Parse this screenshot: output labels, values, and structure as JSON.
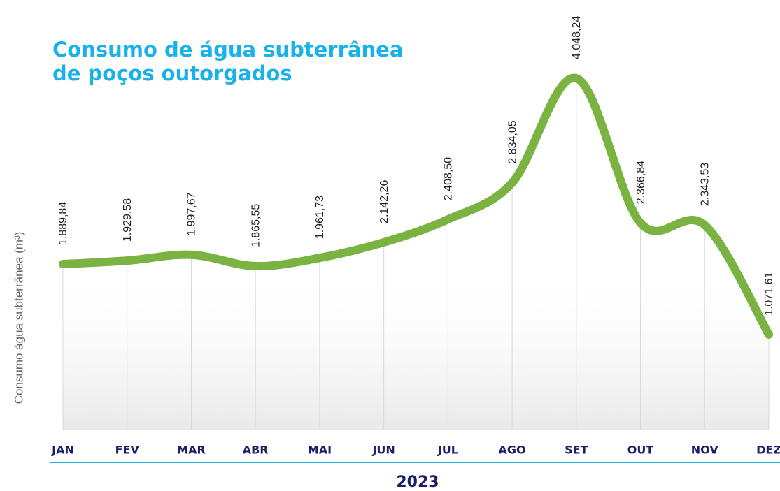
{
  "chart_data": {
    "type": "line",
    "title": [
      "Consumo de água subterrânea",
      "de poços outorgados"
    ],
    "ylabel": "Consumo água subterrânea (m³)",
    "xlabel": "2023",
    "categories": [
      "JAN",
      "FEV",
      "MAR",
      "ABR",
      "MAI",
      "JUN",
      "JUL",
      "AGO",
      "SET",
      "OUT",
      "NOV",
      "DEZ"
    ],
    "values": [
      1889.84,
      1929.58,
      1997.67,
      1865.55,
      1961.73,
      2142.26,
      2408.5,
      2834.05,
      4048.24,
      2366.84,
      2343.53,
      1071.61
    ],
    "value_labels": [
      "1.889,84",
      "1.929,58",
      "1.997,67",
      "1.865,55",
      "1.961,73",
      "2.142,26",
      "2.408,50",
      "2.834,05",
      "4.048,24",
      "2.366,84",
      "2.343,53",
      "1.071,61"
    ],
    "color": "#7ab342"
  }
}
